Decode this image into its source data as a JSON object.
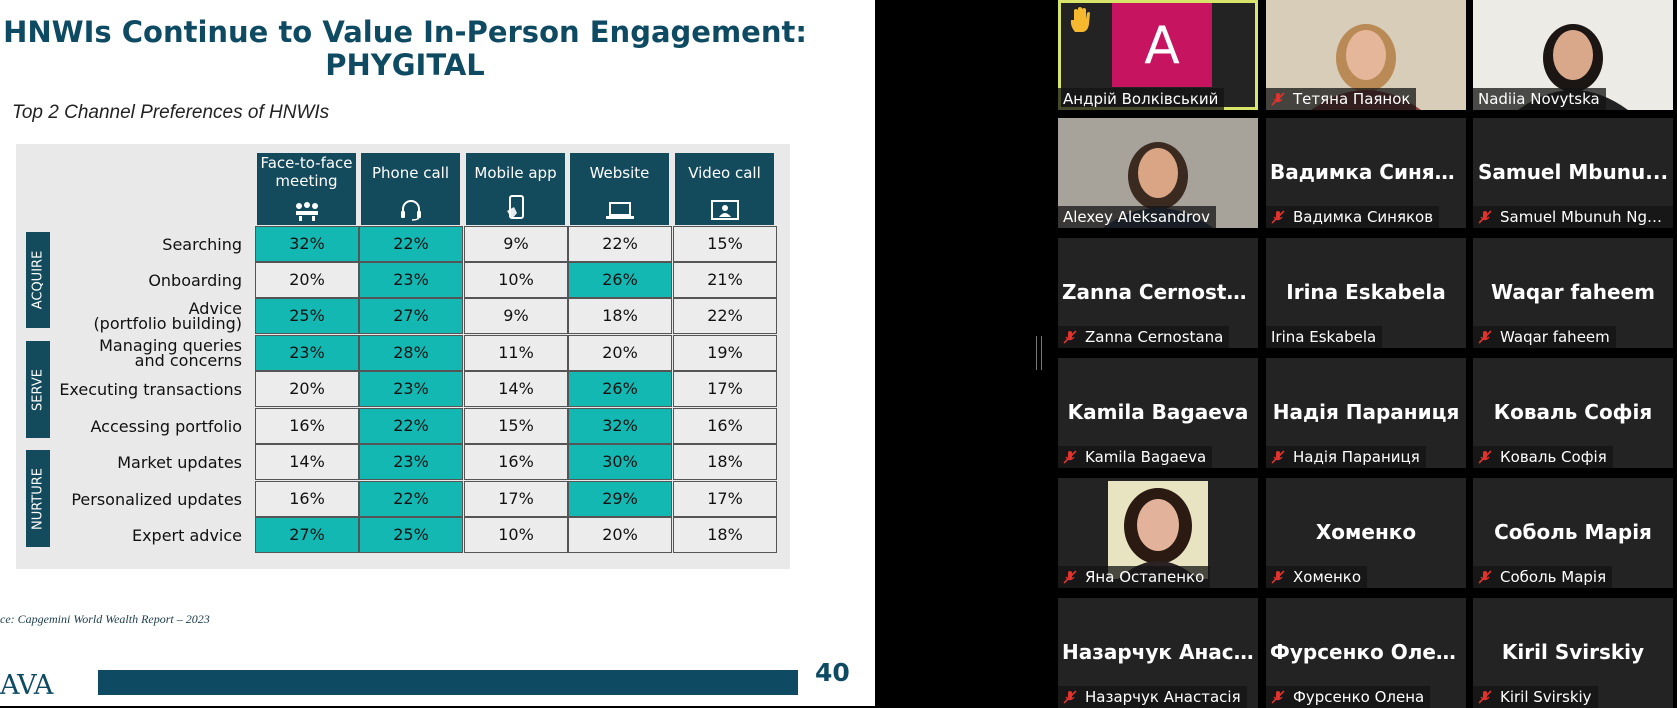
{
  "slide": {
    "title": "HNWIs Continue to Value In-Person Engagement:\nPHYGITAL",
    "subtitle": "Top 2 Channel Preferences of HNWIs",
    "source": "ce: Capgemini World Wealth Report – 2023",
    "logo_text": "AVA",
    "page_number": "40",
    "table": {
      "columns": [
        {
          "label": "Face-to-face meeting",
          "icon": "meeting-icon"
        },
        {
          "label": "Phone call",
          "icon": "headset-icon"
        },
        {
          "label": "Mobile app",
          "icon": "mobile-icon"
        },
        {
          "label": "Website",
          "icon": "laptop-icon"
        },
        {
          "label": "Video call",
          "icon": "video-call-icon"
        }
      ],
      "groups": [
        "ACQUIRE",
        "SERVE",
        "NURTURE"
      ],
      "rows": [
        {
          "label": "Searching",
          "values": [
            "32%",
            "22%",
            "9%",
            "22%",
            "15%"
          ],
          "highlight": [
            true,
            true,
            false,
            false,
            false
          ]
        },
        {
          "label": "Onboarding",
          "values": [
            "20%",
            "23%",
            "10%",
            "26%",
            "21%"
          ],
          "highlight": [
            false,
            true,
            false,
            true,
            false
          ]
        },
        {
          "label": "Advice\n(portfolio building)",
          "values": [
            "25%",
            "27%",
            "9%",
            "18%",
            "22%"
          ],
          "highlight": [
            true,
            true,
            false,
            false,
            false
          ]
        },
        {
          "label": "Managing queries\nand concerns",
          "values": [
            "23%",
            "28%",
            "11%",
            "20%",
            "19%"
          ],
          "highlight": [
            true,
            true,
            false,
            false,
            false
          ]
        },
        {
          "label": "Executing transactions",
          "values": [
            "20%",
            "23%",
            "14%",
            "26%",
            "17%"
          ],
          "highlight": [
            false,
            true,
            false,
            true,
            false
          ]
        },
        {
          "label": "Accessing portfolio",
          "values": [
            "16%",
            "22%",
            "15%",
            "32%",
            "16%"
          ],
          "highlight": [
            false,
            true,
            false,
            true,
            false
          ]
        },
        {
          "label": "Market updates",
          "values": [
            "14%",
            "23%",
            "16%",
            "30%",
            "18%"
          ],
          "highlight": [
            false,
            true,
            false,
            true,
            false
          ]
        },
        {
          "label": "Personalized updates",
          "values": [
            "16%",
            "22%",
            "17%",
            "29%",
            "17%"
          ],
          "highlight": [
            false,
            true,
            false,
            true,
            false
          ]
        },
        {
          "label": "Expert advice",
          "values": [
            "27%",
            "25%",
            "10%",
            "20%",
            "18%"
          ],
          "highlight": [
            true,
            true,
            false,
            false,
            false
          ]
        }
      ],
      "highlight_color": "#13b8b3",
      "header_color": "#134a5c"
    }
  },
  "gallery": {
    "tiles": [
      {
        "name": "Андрій Волківський",
        "big": "",
        "muted": false,
        "kind": "avatar",
        "avatar_letter": "A",
        "hand_raised": true,
        "active_speaker": true
      },
      {
        "name": "Тетяна Паянок",
        "big": "",
        "muted": true,
        "kind": "video"
      },
      {
        "name": "Nadiia Novytska",
        "big": "",
        "muted": false,
        "kind": "video"
      },
      {
        "name": "Alexey Aleksandrov",
        "big": "",
        "muted": false,
        "kind": "video"
      },
      {
        "name": "Вадимка Синяков",
        "big": "Вадимка Синяк...",
        "muted": true,
        "kind": "name"
      },
      {
        "name": "Samuel Mbunuh Ngw...",
        "big": "Samuel Mbunu...",
        "muted": true,
        "kind": "name"
      },
      {
        "name": "Zanna Cernostana",
        "big": "Zanna Cernostana",
        "muted": true,
        "kind": "name"
      },
      {
        "name": "Irina Eskabela",
        "big": "Irina Eskabela",
        "muted": false,
        "kind": "name"
      },
      {
        "name": "Waqar faheem",
        "big": "Waqar faheem",
        "muted": true,
        "kind": "name"
      },
      {
        "name": "Kamila Bagaeva",
        "big": "Kamila Bagaeva",
        "muted": true,
        "kind": "name"
      },
      {
        "name": "Надія Параниця",
        "big": "Надія Параниця",
        "muted": true,
        "kind": "name"
      },
      {
        "name": "Коваль Софія",
        "big": "Коваль Софія",
        "muted": true,
        "kind": "name"
      },
      {
        "name": "Яна Остапенко",
        "big": "",
        "muted": true,
        "kind": "photo"
      },
      {
        "name": "Хоменко",
        "big": "Хоменко",
        "muted": true,
        "kind": "name"
      },
      {
        "name": "Соболь Марія",
        "big": "Соболь Марія",
        "muted": true,
        "kind": "name"
      },
      {
        "name": "Назарчук Анастасія",
        "big": "Назарчук Анас...",
        "muted": true,
        "kind": "name"
      },
      {
        "name": "Фурсенко Олена",
        "big": "Фурсенко Олена",
        "muted": true,
        "kind": "name"
      },
      {
        "name": "Kiril Svirskiy",
        "big": "Kiril Svirskiy",
        "muted": true,
        "kind": "name"
      }
    ],
    "active_border_color": "#d8e46a",
    "muted_icon_color": "#e0332e"
  }
}
